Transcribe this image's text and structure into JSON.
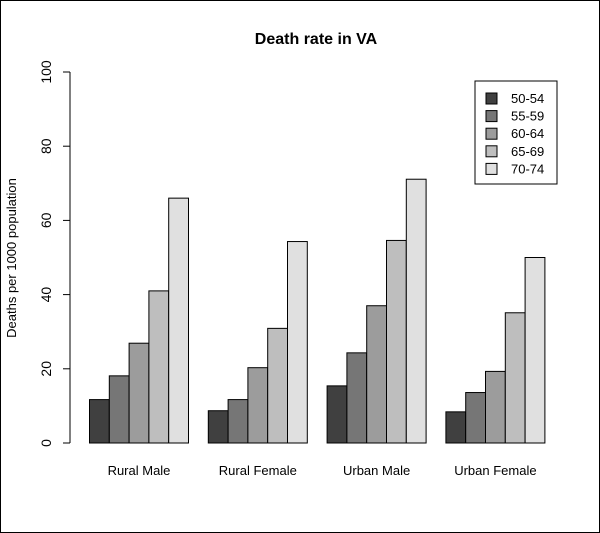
{
  "chart_data": {
    "type": "bar",
    "title": "Death rate in VA",
    "xlabel": "",
    "ylabel": "Deaths per 1000 population",
    "ylim": [
      0,
      100
    ],
    "yticks": [
      0,
      20,
      40,
      60,
      80,
      100
    ],
    "grid": false,
    "legend": "top-right",
    "categories": [
      "Rural Male",
      "Rural Female",
      "Urban Male",
      "Urban Female"
    ],
    "series": [
      {
        "name": "50-54",
        "color": "#404040",
        "values": [
          11.7,
          8.7,
          15.4,
          8.4
        ]
      },
      {
        "name": "55-59",
        "color": "#767676",
        "values": [
          18.1,
          11.7,
          24.3,
          13.6
        ]
      },
      {
        "name": "60-64",
        "color": "#9c9c9c",
        "values": [
          26.9,
          20.3,
          37.0,
          19.3
        ]
      },
      {
        "name": "65-69",
        "color": "#bebebe",
        "values": [
          41.0,
          30.9,
          54.6,
          35.1
        ]
      },
      {
        "name": "70-74",
        "color": "#e0e0e0",
        "values": [
          66.0,
          54.3,
          71.1,
          50.0
        ]
      }
    ]
  }
}
